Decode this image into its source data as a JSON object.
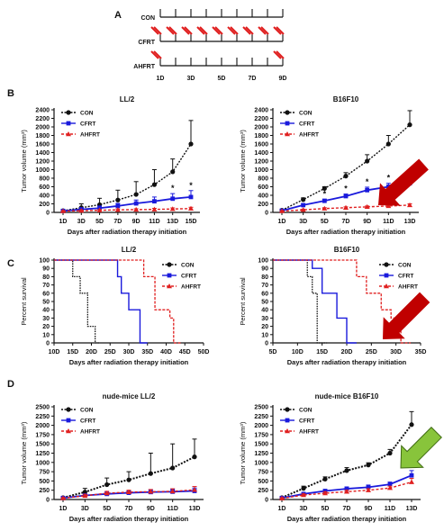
{
  "panel_a": {
    "letter": "A",
    "rows": [
      {
        "label": "CON",
        "slashes": [],
        "color": "#e02020"
      },
      {
        "label": "CFRT",
        "slashes": [
          0,
          1,
          2,
          3,
          4,
          5,
          6,
          7,
          8
        ],
        "color": "#e02020"
      },
      {
        "label": "AHFRT",
        "slashes": [
          0,
          8
        ],
        "color": "#e02020"
      }
    ],
    "days": [
      "1D",
      "3D",
      "5D",
      "7D",
      "9D"
    ]
  },
  "section_letters": [
    "B",
    "C",
    "D"
  ],
  "colors": {
    "CON": "#111111",
    "CFRT": "#1a1adc",
    "AHFRT": "#e02020",
    "red_arrow": "#c00000",
    "green_arrow": "#88c43b"
  },
  "chart_data": [
    {
      "id": "B-left",
      "type": "line",
      "title": "LL/2",
      "xlabel": "Days after radiation therapy initiation",
      "ylabel": "Tumor volume (mm³)",
      "categories": [
        "1D",
        "3D",
        "5D",
        "7D",
        "9D",
        "11D",
        "13D",
        "15D"
      ],
      "ylim": [
        0,
        2400
      ],
      "yticks": [
        "0",
        "200",
        "400",
        "600",
        "800",
        "1000",
        "1200",
        "1400",
        "1600",
        "1800",
        "2000",
        "2200",
        "2400"
      ],
      "series": [
        {
          "name": "CON",
          "values": [
            40,
            110,
            180,
            290,
            420,
            650,
            950,
            1600
          ],
          "err": [
            30,
            90,
            150,
            230,
            300,
            350,
            300,
            550
          ]
        },
        {
          "name": "CFRT",
          "values": [
            35,
            70,
            100,
            150,
            210,
            260,
            320,
            360
          ],
          "err": [
            20,
            40,
            50,
            60,
            80,
            100,
            120,
            150
          ]
        },
        {
          "name": "AHFRT",
          "values": [
            30,
            40,
            50,
            60,
            65,
            70,
            80,
            90
          ],
          "err": [
            10,
            15,
            15,
            20,
            20,
            25,
            25,
            30
          ]
        }
      ],
      "annotations": [
        "*",
        "*"
      ],
      "legend": "top-left"
    },
    {
      "id": "B-right",
      "type": "line",
      "title": "B16F10",
      "xlabel": "Days after radiation therapy initiation",
      "ylabel": "Tumor volume (mm³)",
      "categories": [
        "1D",
        "3D",
        "5D",
        "7D",
        "9D",
        "11D",
        "13D"
      ],
      "ylim": [
        0,
        2400
      ],
      "yticks": [
        "0",
        "200",
        "400",
        "600",
        "800",
        "1000",
        "1200",
        "1400",
        "1600",
        "1800",
        "2000",
        "2200",
        "2400"
      ],
      "series": [
        {
          "name": "CON",
          "values": [
            50,
            300,
            560,
            850,
            1200,
            1600,
            2050
          ],
          "err": [
            20,
            40,
            40,
            80,
            150,
            200,
            330
          ]
        },
        {
          "name": "CFRT",
          "values": [
            40,
            170,
            270,
            380,
            520,
            600,
            680
          ],
          "err": [
            20,
            30,
            40,
            50,
            70,
            80,
            90
          ]
        },
        {
          "name": "AHFRT",
          "values": [
            30,
            60,
            90,
            110,
            130,
            150,
            170
          ],
          "err": [
            10,
            15,
            20,
            20,
            20,
            25,
            30
          ]
        }
      ],
      "annotations": [
        "*",
        "*",
        "*",
        "*",
        "*"
      ],
      "legend": "top-left"
    },
    {
      "id": "C-left",
      "type": "line",
      "title": "LL/2",
      "xlabel": "Days after radiation therapy initiation",
      "ylabel": "Percent survival",
      "xticks": [
        "10D",
        "15D",
        "20D",
        "25D",
        "30D",
        "35D",
        "40D",
        "45D",
        "50D"
      ],
      "xlim": [
        10,
        50
      ],
      "ylim": [
        0,
        100
      ],
      "yticks": [
        "0",
        "10",
        "20",
        "30",
        "40",
        "50",
        "60",
        "70",
        "80",
        "90",
        "100"
      ],
      "series": [
        {
          "name": "CON",
          "steps": [
            [
              10,
              100
            ],
            [
              15,
              100
            ],
            [
              15,
              80
            ],
            [
              17,
              80
            ],
            [
              17,
              60
            ],
            [
              19,
              60
            ],
            [
              19,
              20
            ],
            [
              21,
              20
            ],
            [
              21,
              0
            ],
            [
              22,
              0
            ]
          ]
        },
        {
          "name": "CFRT",
          "steps": [
            [
              10,
              100
            ],
            [
              27,
              100
            ],
            [
              27,
              80
            ],
            [
              28,
              80
            ],
            [
              28,
              60
            ],
            [
              30,
              60
            ],
            [
              30,
              40
            ],
            [
              33,
              40
            ],
            [
              33,
              0
            ],
            [
              35,
              0
            ]
          ]
        },
        {
          "name": "AHFRT",
          "steps": [
            [
              10,
              100
            ],
            [
              34,
              100
            ],
            [
              34,
              80
            ],
            [
              37,
              80
            ],
            [
              37,
              40
            ],
            [
              41,
              40
            ],
            [
              41,
              30
            ],
            [
              42,
              30
            ],
            [
              42,
              0
            ],
            [
              44,
              0
            ]
          ]
        }
      ],
      "legend": "top-right"
    },
    {
      "id": "C-right",
      "type": "line",
      "title": "B16F10",
      "xlabel": "Days after radiation therapy initiation",
      "ylabel": "Percent survival",
      "xticks": [
        "5D",
        "10D",
        "15D",
        "20D",
        "25D",
        "30D",
        "35D"
      ],
      "xlim": [
        5,
        35
      ],
      "ylim": [
        0,
        100
      ],
      "yticks": [
        "0",
        "10",
        "20",
        "30",
        "40",
        "50",
        "60",
        "70",
        "80",
        "90",
        "100"
      ],
      "series": [
        {
          "name": "CON",
          "steps": [
            [
              5,
              100
            ],
            [
              12,
              100
            ],
            [
              12,
              80
            ],
            [
              13,
              80
            ],
            [
              13,
              60
            ],
            [
              14,
              60
            ],
            [
              14,
              0
            ],
            [
              16,
              0
            ]
          ]
        },
        {
          "name": "CFRT",
          "steps": [
            [
              5,
              100
            ],
            [
              13,
              100
            ],
            [
              13,
              90
            ],
            [
              15,
              90
            ],
            [
              15,
              60
            ],
            [
              18,
              60
            ],
            [
              18,
              30
            ],
            [
              20,
              30
            ],
            [
              20,
              0
            ],
            [
              22,
              0
            ]
          ]
        },
        {
          "name": "AHFRT",
          "steps": [
            [
              5,
              100
            ],
            [
              22,
              100
            ],
            [
              22,
              80
            ],
            [
              24,
              80
            ],
            [
              24,
              60
            ],
            [
              27,
              60
            ],
            [
              27,
              40
            ],
            [
              29,
              40
            ],
            [
              29,
              30
            ],
            [
              31,
              30
            ],
            [
              31,
              0
            ],
            [
              33,
              0
            ]
          ]
        }
      ],
      "legend": "top-right"
    },
    {
      "id": "D-left",
      "type": "line",
      "title": "nude-mice LL/2",
      "xlabel": "Days after radiation therapy initiation",
      "ylabel": "Tumor volume (mm³)",
      "categories": [
        "1D",
        "3D",
        "5D",
        "7D",
        "9D",
        "11D",
        "13D"
      ],
      "ylim": [
        0,
        2500
      ],
      "yticks": [
        "0",
        "250",
        "500",
        "750",
        "1000",
        "1250",
        "1500",
        "1750",
        "2000",
        "2250",
        "2500"
      ],
      "series": [
        {
          "name": "CON",
          "values": [
            50,
            200,
            400,
            530,
            700,
            850,
            1150
          ],
          "err": [
            20,
            100,
            180,
            220,
            550,
            650,
            480
          ]
        },
        {
          "name": "CFRT",
          "values": [
            40,
            110,
            150,
            180,
            200,
            210,
            230
          ],
          "err": [
            15,
            40,
            50,
            50,
            60,
            60,
            80
          ]
        },
        {
          "name": "AHFRT",
          "values": [
            35,
            100,
            170,
            200,
            210,
            220,
            260
          ],
          "err": [
            15,
            40,
            50,
            50,
            60,
            70,
            90
          ]
        }
      ],
      "legend": "top-left"
    },
    {
      "id": "D-right",
      "type": "line",
      "title": "nude-mice B16F10",
      "xlabel": "Days after radiation therapy initiation",
      "ylabel": "Tumor volume (mm³)",
      "categories": [
        "1D",
        "3D",
        "5D",
        "7D",
        "9D",
        "11D",
        "13D"
      ],
      "ylim": [
        0,
        2500
      ],
      "yticks": [
        "0",
        "250",
        "500",
        "750",
        "1000",
        "1250",
        "1500",
        "1750",
        "2000",
        "2250",
        "2500"
      ],
      "series": [
        {
          "name": "CON",
          "values": [
            50,
            300,
            550,
            780,
            930,
            1250,
            2020
          ],
          "err": [
            20,
            60,
            60,
            80,
            60,
            100,
            350
          ]
        },
        {
          "name": "CFRT",
          "values": [
            40,
            150,
            230,
            290,
            330,
            410,
            650
          ],
          "err": [
            15,
            30,
            40,
            50,
            60,
            60,
            130
          ]
        },
        {
          "name": "AHFRT",
          "values": [
            30,
            120,
            170,
            210,
            250,
            310,
            470
          ],
          "err": [
            15,
            30,
            40,
            40,
            40,
            50,
            100
          ]
        }
      ],
      "legend": "top-left"
    }
  ]
}
